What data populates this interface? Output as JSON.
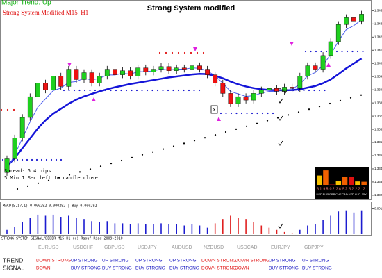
{
  "header": {
    "trend": "Major Trend: Up",
    "title": "Strong System modified",
    "subtitle": "Strong System Modified M15_H1"
  },
  "info": {
    "spread": "Spread: 5.4 pips",
    "timer": "5 Min 1 Sec left to candle close",
    "buy_label": "Buy",
    "exit_label": "x"
  },
  "price_chart": {
    "type": "candlestick",
    "up_color": "#1fd01f",
    "down_color": "#ee1111",
    "ylim": [
      1.33245,
      1.3446
    ],
    "yticks": [
      1.33275,
      1.33355,
      1.33435,
      1.33515,
      1.33595,
      1.33675,
      1.33755,
      1.33835,
      1.33915,
      1.33995,
      1.34075,
      1.34155,
      1.34235,
      1.34315,
      1.34395
    ],
    "open": [
      1.33413,
      1.33496,
      1.33622,
      1.33747,
      1.33873,
      1.33956,
      1.33914,
      1.33998,
      1.33935,
      1.3404,
      1.33977,
      1.34019,
      1.33956,
      1.33998,
      1.3404,
      1.34006,
      1.34031,
      1.33998,
      1.34048,
      1.34023,
      1.3404,
      1.34056,
      1.34031,
      1.34048,
      1.3404,
      1.34061,
      1.3404,
      1.34006,
      1.33956,
      1.33893,
      1.33831,
      1.33873,
      1.33852,
      1.33893,
      1.33914,
      1.33923,
      1.33906,
      1.33931,
      1.33923,
      1.33998,
      1.34061,
      1.3404,
      1.34123,
      1.34207,
      1.34311,
      1.34353,
      1.34332
    ],
    "close": [
      1.33496,
      1.33622,
      1.33747,
      1.33873,
      1.33956,
      1.33914,
      1.33998,
      1.33935,
      1.3404,
      1.33977,
      1.34019,
      1.33956,
      1.33998,
      1.3404,
      1.34006,
      1.34031,
      1.33998,
      1.34048,
      1.34023,
      1.3404,
      1.34056,
      1.34031,
      1.34048,
      1.3404,
      1.34061,
      1.3404,
      1.34006,
      1.33956,
      1.33893,
      1.33831,
      1.33873,
      1.33852,
      1.33893,
      1.33914,
      1.33923,
      1.33906,
      1.33931,
      1.33923,
      1.33998,
      1.34061,
      1.3404,
      1.34123,
      1.34207,
      1.34311,
      1.34353,
      1.34332,
      1.34374
    ],
    "high": [
      1.33516,
      1.33642,
      1.33767,
      1.33893,
      1.33976,
      1.33976,
      1.34018,
      1.34018,
      1.3406,
      1.3406,
      1.34039,
      1.34039,
      1.34018,
      1.3406,
      1.3406,
      1.34051,
      1.34051,
      1.34068,
      1.34068,
      1.3406,
      1.34076,
      1.34076,
      1.34068,
      1.34068,
      1.34081,
      1.34081,
      1.3406,
      1.34026,
      1.33976,
      1.33913,
      1.33893,
      1.33893,
      1.33913,
      1.33934,
      1.33943,
      1.33943,
      1.33951,
      1.33951,
      1.34018,
      1.34081,
      1.34081,
      1.34143,
      1.34227,
      1.34331,
      1.34373,
      1.34373,
      1.34394
    ],
    "low": [
      1.33393,
      1.33476,
      1.33602,
      1.33727,
      1.33853,
      1.33894,
      1.33894,
      1.33915,
      1.33915,
      1.33957,
      1.33957,
      1.33936,
      1.33936,
      1.33978,
      1.33986,
      1.33986,
      1.33978,
      1.33978,
      1.34003,
      1.34003,
      1.3402,
      1.34011,
      1.34011,
      1.3402,
      1.3402,
      1.3402,
      1.33986,
      1.33936,
      1.33873,
      1.33811,
      1.33811,
      1.33832,
      1.33832,
      1.33873,
      1.33894,
      1.33886,
      1.33886,
      1.33903,
      1.33903,
      1.33978,
      1.3402,
      1.3402,
      1.34103,
      1.34187,
      1.34291,
      1.34312,
      1.34312
    ],
    "series": [
      {
        "color": "#1414d8",
        "width": 2.5,
        "values": [
          1.3345,
          1.335,
          1.3356,
          1.3362,
          1.3368,
          1.3373,
          1.3377,
          1.338,
          1.3383,
          1.33855,
          1.33875,
          1.3389,
          1.33905,
          1.33918,
          1.3393,
          1.3394,
          1.3395,
          1.33958,
          1.33966,
          1.33974,
          1.33982,
          1.3399,
          1.33996,
          1.34002,
          1.34008,
          1.34012,
          1.3401,
          1.34,
          1.33985,
          1.33965,
          1.33948,
          1.33935,
          1.33925,
          1.33918,
          1.33914,
          1.33912,
          1.33912,
          1.33913,
          1.33918,
          1.33928,
          1.33938,
          1.33955,
          1.33978,
          1.3401,
          1.34045,
          1.34075,
          1.34105
        ]
      },
      {
        "color": "#4a5cf0",
        "width": 1,
        "values": [
          1.3343,
          1.3352,
          1.3362,
          1.3372,
          1.3381,
          1.3386,
          1.3391,
          1.33925,
          1.3396,
          1.33965,
          1.33985,
          1.33975,
          1.33985,
          1.34005,
          1.34005,
          1.34015,
          1.3401,
          1.34025,
          1.34025,
          1.3403,
          1.3404,
          1.34035,
          1.3404,
          1.3404,
          1.34048,
          1.34045,
          1.3403,
          1.34,
          1.33955,
          1.33905,
          1.3389,
          1.33875,
          1.3388,
          1.33895,
          1.33905,
          1.33905,
          1.33915,
          1.33918,
          1.3395,
          1.34,
          1.3402,
          1.34065,
          1.3413,
          1.3421,
          1.3428,
          1.34305,
          1.3434
        ]
      }
    ]
  },
  "strength_panel": {
    "currencies": [
      "USD",
      "EUR",
      "GBP",
      "CHF",
      "CAD",
      "NZD",
      "AUD",
      "JPY"
    ],
    "values": [
      6.1,
      9.5,
      0.2,
      2.6,
      5.2,
      5.2,
      2.2,
      2.0
    ],
    "max": 10
  },
  "macd": {
    "label": "MACD(5,17,1) 0.000292 0.000292 | Buy 0.000292",
    "ylim": [
      0,
      0.00125
    ],
    "yticks": [
      0.001168
    ],
    "values": [
      0.0002,
      0.00035,
      0.00055,
      0.00075,
      0.0009,
      0.00085,
      0.0009,
      0.0008,
      0.00085,
      0.00075,
      0.0007,
      0.0006,
      0.00055,
      0.0006,
      0.0005,
      0.0005,
      0.00045,
      0.0005,
      0.00045,
      0.00045,
      0.0005,
      0.00045,
      0.00045,
      0.0004,
      0.00045,
      0.0004,
      0.0003,
      0.0005,
      0.0007,
      0.00085,
      0.00075,
      0.0007,
      0.00055,
      0.0004,
      0.0003,
      0.0002,
      0.0001,
      5e-05,
      0.0002,
      0.0004,
      0.00045,
      0.00065,
      0.00085,
      0.00105,
      0.0011,
      0.001,
      0.0011
    ],
    "colors": [
      "#1c1cd0",
      "#1c1cd0",
      "#1c1cd0",
      "#1c1cd0",
      "#1c1cd0",
      "#1c1cd0",
      "#1c1cd0",
      "#1c1cd0",
      "#1c1cd0",
      "#1c1cd0",
      "#1c1cd0",
      "#1c1cd0",
      "#1c1cd0",
      "#1c1cd0",
      "#1c1cd0",
      "#1c1cd0",
      "#1c1cd0",
      "#1c1cd0",
      "#1c1cd0",
      "#1c1cd0",
      "#1c1cd0",
      "#1c1cd0",
      "#1c1cd0",
      "#1c1cd0",
      "#1c1cd0",
      "#1c1cd0",
      "#1c1cd0",
      "#e02020",
      "#e02020",
      "#e02020",
      "#e02020",
      "#e02020",
      "#e02020",
      "#e02020",
      "#e02020",
      "#e02020",
      "#e02020",
      "#e02020",
      "#1c1cd0",
      "#1c1cd0",
      "#1c1cd0",
      "#1c1cd0",
      "#1c1cd0",
      "#1c1cd0",
      "#1c1cd0",
      "#1c1cd0",
      "#1c1cd0"
    ]
  },
  "footer": "STRONG SYSTEM SIGNAL/DEBER_M15_H1 (c) Raouf Riad 2009-2010",
  "table": {
    "columns": [
      "EURUSD",
      "USDCHF",
      "GBPUSD",
      "USDJPY",
      "AUDUSD",
      "NZDUSD",
      "USDCAD",
      "EURJPY",
      "GBPJPY"
    ],
    "rows": [
      {
        "label": "TREND",
        "cells": [
          {
            "text": "DOWN STRONG",
            "color": "#e01010"
          },
          {
            "text": "UP STRONG",
            "color": "#1010c0"
          },
          {
            "text": "UP STRONG",
            "color": "#1010c0"
          },
          {
            "text": "UP STRONG",
            "color": "#1010c0"
          },
          {
            "text": "UP STRONG",
            "color": "#1010c0"
          },
          {
            "text": "DOWN STRONG",
            "color": "#e01010"
          },
          {
            "text": "DOWN STRONG",
            "color": "#e01010"
          },
          {
            "text": "UP STRONG",
            "color": "#1010c0"
          },
          {
            "text": "UP STRONG",
            "color": "#1010c0"
          }
        ]
      },
      {
        "label": "SIGNAL",
        "cells": [
          {
            "text": "DOWN",
            "color": "#e01010"
          },
          {
            "text": "BUY STRONG",
            "color": "#1010c0"
          },
          {
            "text": "BUY STRONG",
            "color": "#1010c0"
          },
          {
            "text": "BUY STRONG",
            "color": "#1010c0"
          },
          {
            "text": "BUY STRONG",
            "color": "#1010c0"
          },
          {
            "text": "DOWN STRONG",
            "color": "#e01010"
          },
          {
            "text": "DOWN",
            "color": "#e01010"
          },
          {
            "text": "BUY STRONG",
            "color": "#1010c0"
          },
          {
            "text": "BUY STRONG",
            "color": "#1010c0"
          }
        ]
      }
    ]
  }
}
